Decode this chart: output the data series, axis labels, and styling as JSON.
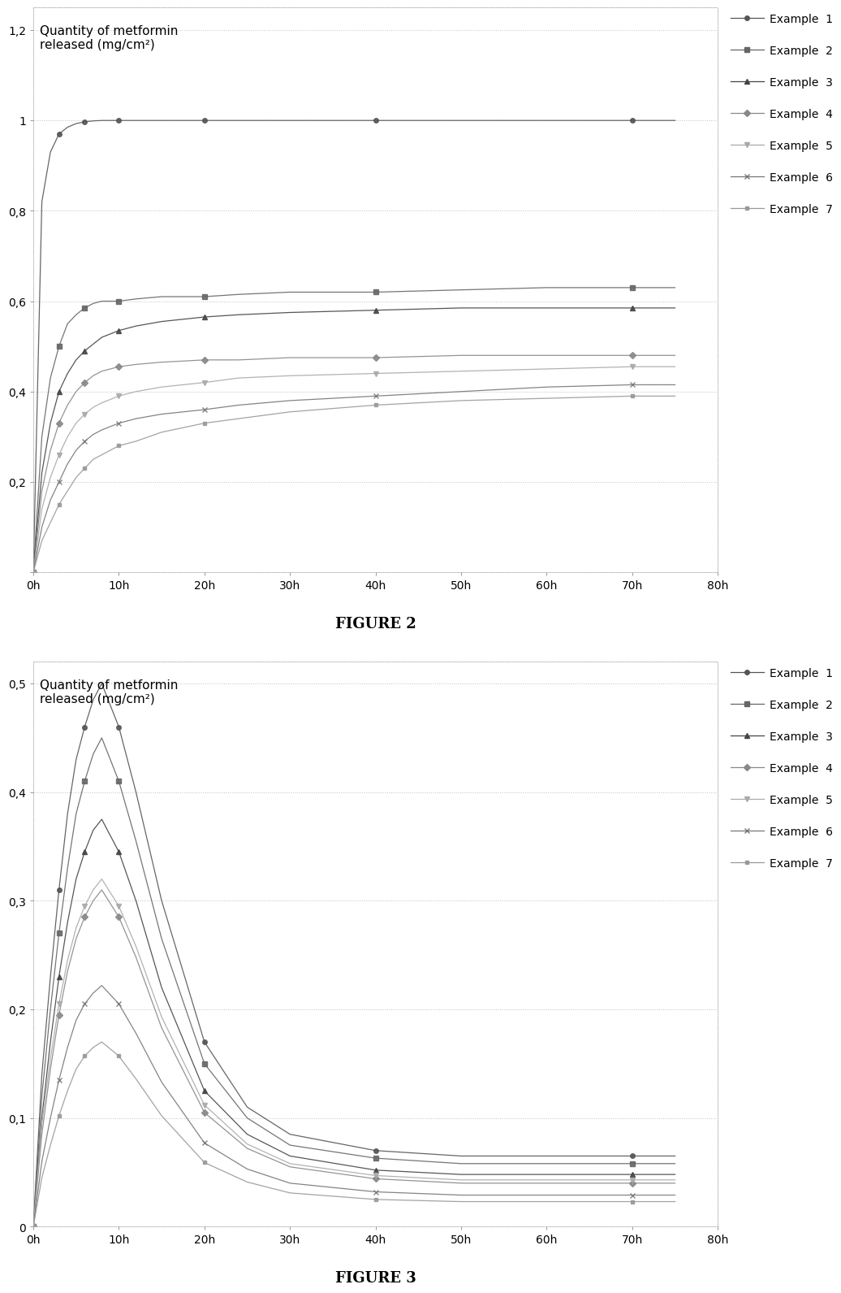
{
  "fig2_title": "FIGURE 2",
  "fig3_title": "FIGURE 3",
  "ylabel_line1": "Quantity of metformin",
  "ylabel_line2": "released (mg/cm²)",
  "xlabel_ticks": [
    0,
    10,
    20,
    30,
    40,
    50,
    60,
    70,
    80
  ],
  "xlabel_labels": [
    "0h",
    "10h",
    "20h",
    "30h",
    "40h",
    "50h",
    "60h",
    "70h",
    "80h"
  ],
  "fig2_ylim": [
    0,
    1.25
  ],
  "fig2_yticks": [
    0.0,
    0.2,
    0.4,
    0.6,
    0.8,
    1.0,
    1.2
  ],
  "fig2_ytick_labels": [
    "",
    "0,2",
    "0,4",
    "0,6",
    "0,8",
    "1",
    "1,2"
  ],
  "fig3_ylim": [
    0,
    0.52
  ],
  "fig3_yticks": [
    0.0,
    0.1,
    0.2,
    0.3,
    0.4,
    0.5
  ],
  "fig3_ytick_labels": [
    "0",
    "0,1",
    "0,2",
    "0,3",
    "0,4",
    "0,5"
  ],
  "legend_labels": [
    "Example  1",
    "Example  2",
    "Example  3",
    "Example  4",
    "Example  5",
    "Example  6",
    "Example  7"
  ],
  "background_color": "#ffffff",
  "grid_color": "#bbbbbb",
  "border_color": "#aaaaaa",
  "fig2_data": {
    "x": [
      0,
      1,
      2,
      3,
      4,
      5,
      6,
      7,
      8,
      10,
      12,
      15,
      20,
      24,
      30,
      40,
      50,
      60,
      70,
      75
    ],
    "ex1": [
      0.0,
      0.82,
      0.93,
      0.97,
      0.985,
      0.993,
      0.997,
      0.999,
      1.0,
      1.0,
      1.0,
      1.0,
      1.0,
      1.0,
      1.0,
      1.0,
      1.0,
      1.0,
      1.0,
      1.0
    ],
    "ex2": [
      0.0,
      0.3,
      0.43,
      0.5,
      0.55,
      0.57,
      0.585,
      0.595,
      0.6,
      0.6,
      0.605,
      0.61,
      0.61,
      0.615,
      0.62,
      0.62,
      0.625,
      0.63,
      0.63,
      0.63
    ],
    "ex3": [
      0.0,
      0.22,
      0.33,
      0.4,
      0.44,
      0.47,
      0.49,
      0.505,
      0.52,
      0.535,
      0.545,
      0.555,
      0.565,
      0.57,
      0.575,
      0.58,
      0.585,
      0.585,
      0.585,
      0.585
    ],
    "ex4": [
      0.0,
      0.18,
      0.27,
      0.33,
      0.37,
      0.4,
      0.42,
      0.435,
      0.445,
      0.455,
      0.46,
      0.465,
      0.47,
      0.47,
      0.475,
      0.475,
      0.48,
      0.48,
      0.48,
      0.48
    ],
    "ex5": [
      0.0,
      0.14,
      0.21,
      0.26,
      0.3,
      0.33,
      0.35,
      0.365,
      0.375,
      0.39,
      0.4,
      0.41,
      0.42,
      0.43,
      0.435,
      0.44,
      0.445,
      0.45,
      0.455,
      0.455
    ],
    "ex6": [
      0.0,
      0.1,
      0.16,
      0.2,
      0.24,
      0.27,
      0.29,
      0.305,
      0.315,
      0.33,
      0.34,
      0.35,
      0.36,
      0.37,
      0.38,
      0.39,
      0.4,
      0.41,
      0.415,
      0.415
    ],
    "ex7": [
      0.0,
      0.07,
      0.11,
      0.15,
      0.18,
      0.21,
      0.23,
      0.25,
      0.26,
      0.28,
      0.29,
      0.31,
      0.33,
      0.34,
      0.355,
      0.37,
      0.38,
      0.385,
      0.39,
      0.39
    ]
  },
  "fig3_data": {
    "x": [
      0,
      1,
      2,
      3,
      4,
      5,
      6,
      7,
      8,
      10,
      12,
      15,
      20,
      25,
      30,
      40,
      50,
      60,
      70,
      75
    ],
    "ex1": [
      0.0,
      0.14,
      0.23,
      0.31,
      0.38,
      0.43,
      0.46,
      0.485,
      0.5,
      0.46,
      0.4,
      0.3,
      0.17,
      0.11,
      0.085,
      0.07,
      0.065,
      0.065,
      0.065,
      0.065
    ],
    "ex2": [
      0.0,
      0.12,
      0.2,
      0.27,
      0.33,
      0.38,
      0.41,
      0.435,
      0.45,
      0.41,
      0.355,
      0.265,
      0.15,
      0.1,
      0.075,
      0.063,
      0.058,
      0.058,
      0.058,
      0.058
    ],
    "ex3": [
      0.0,
      0.1,
      0.17,
      0.23,
      0.28,
      0.32,
      0.345,
      0.365,
      0.375,
      0.345,
      0.3,
      0.22,
      0.125,
      0.085,
      0.065,
      0.052,
      0.048,
      0.048,
      0.048,
      0.048
    ],
    "ex4": [
      0.0,
      0.085,
      0.145,
      0.195,
      0.235,
      0.265,
      0.285,
      0.3,
      0.31,
      0.285,
      0.248,
      0.183,
      0.105,
      0.072,
      0.055,
      0.044,
      0.04,
      0.04,
      0.04,
      0.04
    ],
    "ex5": [
      0.0,
      0.095,
      0.155,
      0.205,
      0.245,
      0.275,
      0.295,
      0.31,
      0.32,
      0.295,
      0.258,
      0.193,
      0.112,
      0.076,
      0.058,
      0.047,
      0.043,
      0.043,
      0.043,
      0.043
    ],
    "ex6": [
      0.0,
      0.06,
      0.1,
      0.135,
      0.165,
      0.19,
      0.205,
      0.215,
      0.222,
      0.205,
      0.178,
      0.133,
      0.077,
      0.053,
      0.04,
      0.032,
      0.029,
      0.029,
      0.029,
      0.029
    ],
    "ex7": [
      0.0,
      0.045,
      0.075,
      0.102,
      0.125,
      0.145,
      0.157,
      0.165,
      0.17,
      0.157,
      0.136,
      0.102,
      0.059,
      0.041,
      0.031,
      0.025,
      0.023,
      0.023,
      0.023,
      0.023
    ]
  },
  "gray_shades": [
    "#555555",
    "#666666",
    "#444444",
    "#888888",
    "#aaaaaa",
    "#777777",
    "#999999"
  ],
  "marker_types": [
    "o",
    "s",
    "^",
    "D",
    "v",
    "x",
    "s"
  ],
  "marker_sizes": [
    4,
    4,
    4,
    4,
    4,
    5,
    3
  ],
  "line_width": 0.9
}
